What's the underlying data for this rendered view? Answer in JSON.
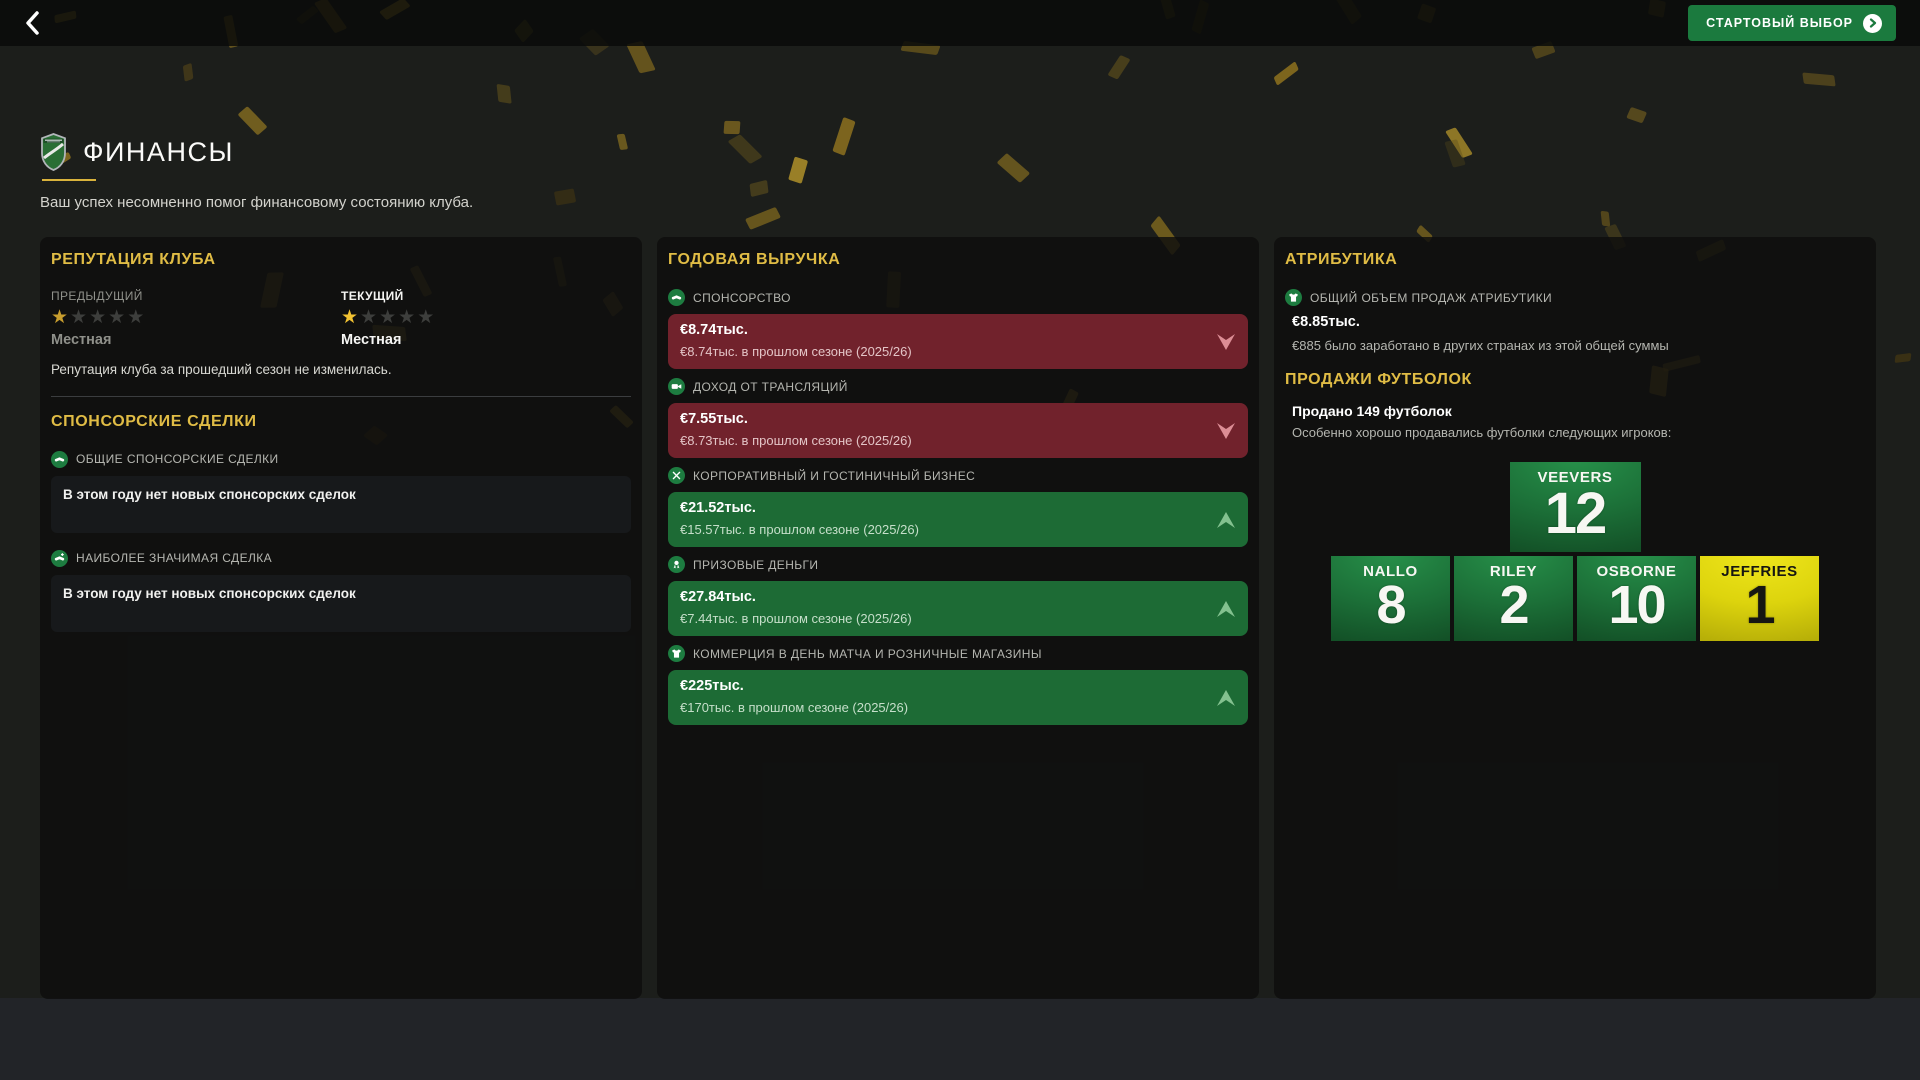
{
  "topbar": {
    "start_button_label": "СТАРТОВЫЙ ВЫБОР"
  },
  "header": {
    "title": "ФИНАНСЫ",
    "subtitle": "Ваш успех несомненно помог финансовому состоянию клуба."
  },
  "reputation": {
    "heading": "РЕПУТАЦИЯ КЛУБА",
    "previous_label": "ПРЕДЫДУЩИЙ",
    "current_label": "ТЕКУЩИЙ",
    "previous_value": "Местная",
    "current_value": "Местная",
    "previous_stars": 1,
    "current_stars": 1,
    "stars_total": 5,
    "note": "Репутация клуба за прошедший сезон не изменилась."
  },
  "sponsorship": {
    "heading": "СПОНСОРСКИЕ СДЕЛКИ",
    "sections": [
      {
        "label": "ОБЩИЕ СПОНСОРСКИЕ СДЕЛКИ",
        "icon": "handshake-icon",
        "empty_text": "В этом году нет новых спонсорских сделок"
      },
      {
        "label": "НАИБОЛЕЕ ЗНАЧИМАЯ СДЕЛКА",
        "icon": "handshake-plus-icon",
        "empty_text": "В этом году нет новых спонсорских сделок"
      }
    ]
  },
  "revenue": {
    "heading": "ГОДОВАЯ ВЫРУЧКА",
    "rows": [
      {
        "label": "СПОНСОРСТВО",
        "icon": "handshake-icon",
        "value": "€8.74тыс.",
        "previous": "€8.74тыс. в прошлом сезоне (2025/26)",
        "trend": "down"
      },
      {
        "label": "ДОХОД ОТ ТРАНСЛЯЦИЙ",
        "icon": "camera-icon",
        "value": "€7.55тыс.",
        "previous": "€8.73тыс. в прошлом сезоне (2025/26)",
        "trend": "down"
      },
      {
        "label": "КОРПОРАТИВНЫЙ И ГОСТИНИЧНЫЙ БИЗНЕС",
        "icon": "cutlery-icon",
        "value": "€21.52тыс.",
        "previous": "€15.57тыс. в прошлом сезоне (2025/26)",
        "trend": "up"
      },
      {
        "label": "ПРИЗОВЫЕ ДЕНЬГИ",
        "icon": "medal-icon",
        "value": "€27.84тыс.",
        "previous": "€7.44тыс. в прошлом сезоне (2025/26)",
        "trend": "up"
      },
      {
        "label": "КОММЕРЦИЯ В ДЕНЬ МАТЧА И РОЗНИЧНЫЕ МАГАЗИНЫ",
        "icon": "shirt-icon",
        "value": "€225тыс.",
        "previous": "€170тыс. в прошлом сезоне (2025/26)",
        "trend": "up"
      }
    ]
  },
  "merchandise": {
    "heading": "АТРИБУТИКА",
    "total_label": "ОБЩИЙ ОБЪЕМ ПРОДАЖ АТРИБУТИКИ",
    "total_value": "€8.85тыс.",
    "total_note": "€885 было заработано в других странах из этой общей суммы",
    "shirt_sales_heading": "ПРОДАЖИ ФУТБОЛОК",
    "sold_line": "Продано 149 футболок",
    "sold_note": "Особенно хорошо продавались футболки следующих игроков:",
    "top_shirt": {
      "name": "VEEVERS",
      "number": "12",
      "color": "green"
    },
    "shirts": [
      {
        "name": "NALLO",
        "number": "8",
        "color": "green"
      },
      {
        "name": "RILEY",
        "number": "2",
        "color": "green"
      },
      {
        "name": "OSBORNE",
        "number": "10",
        "color": "green"
      },
      {
        "name": "JEFFRIES",
        "number": "1",
        "color": "yellow"
      }
    ]
  },
  "colors": {
    "accent_gold": "#e0bc45",
    "positive_green": "#1d6b35",
    "negative_red": "#71222c",
    "button_green": "#1b7a3e",
    "icon_circle_green": "#1d7c40",
    "star_gold": "#f2c232"
  }
}
